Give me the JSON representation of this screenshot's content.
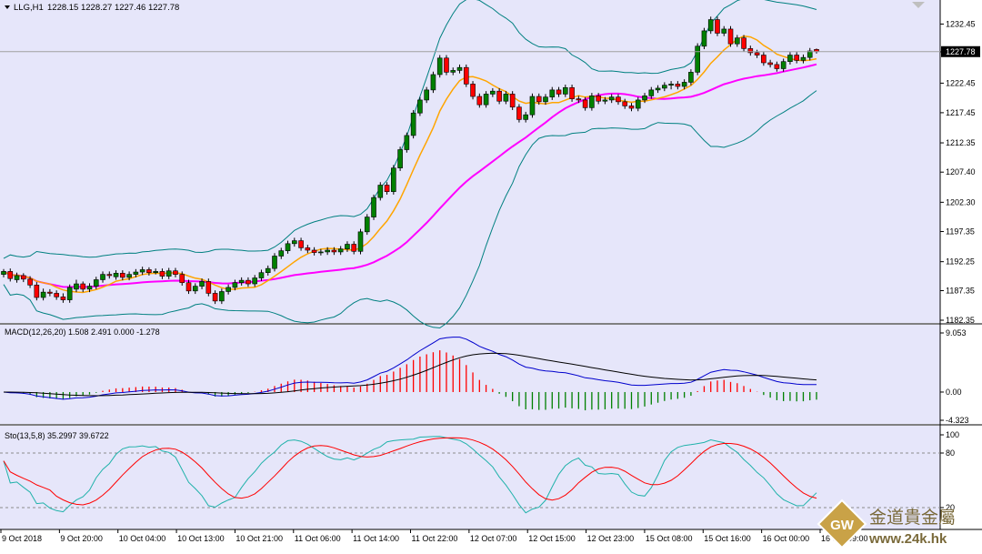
{
  "header": {
    "symbol_label": "LLG,H1",
    "ohlc_label": "1228.15 1228.27 1227.46 1227.78",
    "current_price": "1227.78"
  },
  "colors": {
    "background": "#E6E6FA",
    "bull_candle": "#008000",
    "bear_candle": "#FF0000",
    "ma_fast": "#FFA500",
    "ma_slow": "#FF00FF",
    "bands": "#008080",
    "macd_signal": "#000000",
    "macd_line": "#0000CD",
    "macd_hist_pos": "#FF0000",
    "macd_hist_neg": "#008000",
    "sto_main": "#FF0000",
    "sto_signal": "#20B2AA"
  },
  "chart_data": [
    {
      "type": "candlestick",
      "title": "LLG,H1",
      "ylim": [
        1182.35,
        1235.9
      ],
      "y_ticks": [
        "1232.45",
        "1227.75",
        "1222.45",
        "1217.45",
        "1212.35",
        "1207.40",
        "1202.30",
        "1197.35",
        "1192.25",
        "1187.35",
        "1182.35"
      ],
      "x_ticks": [
        "9 Oct 2018",
        "9 Oct 20:00",
        "10 Oct 04:00",
        "10 Oct 13:00",
        "10 Oct 21:00",
        "11 Oct 06:00",
        "11 Oct 14:00",
        "11 Oct 22:00",
        "12 Oct 07:00",
        "12 Oct 15:00",
        "12 Oct 23:00",
        "15 Oct 08:00",
        "15 Oct 16:00",
        "16 Oct 00:00",
        "16 Oct 09:00"
      ],
      "close": [
        1190.6,
        1189.4,
        1189.9,
        1189.3,
        1188.3,
        1186.2,
        1187.1,
        1186.9,
        1186.3,
        1185.8,
        1187.9,
        1188.5,
        1187.6,
        1188.1,
        1189.2,
        1190.1,
        1189.9,
        1190.3,
        1189.6,
        1190.1,
        1190.5,
        1190.9,
        1190.4,
        1190.6,
        1189.8,
        1190.7,
        1190.1,
        1188.7,
        1187.3,
        1188.1,
        1188.9,
        1186.9,
        1185.6,
        1187.2,
        1187.9,
        1188.7,
        1189.1,
        1188.5,
        1189.5,
        1190.4,
        1191.1,
        1193.2,
        1194.1,
        1195.3,
        1195.8,
        1194.6,
        1194.2,
        1193.8,
        1193.9,
        1194.2,
        1193.9,
        1194.4,
        1195.2,
        1194.0,
        1197.3,
        1199.8,
        1203.1,
        1205.2,
        1204.1,
        1208.1,
        1211.2,
        1213.6,
        1217.4,
        1219.6,
        1221.3,
        1223.9,
        1226.7,
        1224.3,
        1224.6,
        1225.1,
        1222.3,
        1220.2,
        1218.8,
        1220.6,
        1221.1,
        1219.4,
        1220.6,
        1218.4,
        1216.3,
        1217.1,
        1220.2,
        1219.3,
        1220.1,
        1221.3,
        1220.6,
        1221.7,
        1219.8,
        1219.6,
        1218.3,
        1220.3,
        1219.4,
        1219.6,
        1220.1,
        1219.3,
        1218.6,
        1218.2,
        1219.6,
        1220.3,
        1221.3,
        1221.6,
        1222.1,
        1222.3,
        1221.9,
        1222.6,
        1224.3,
        1228.7,
        1231.3,
        1233.2,
        1230.9,
        1231.6,
        1229.1,
        1230.1,
        1228.3,
        1227.6,
        1227.2,
        1225.9,
        1225.6,
        1224.9,
        1226.1,
        1227.2,
        1226.3,
        1226.8,
        1227.9,
        1227.78
      ],
      "open": [
        1190.1,
        1190.6,
        1189.2,
        1189.9,
        1189.3,
        1188.3,
        1186.2,
        1187.1,
        1186.9,
        1186.3,
        1185.8,
        1187.6,
        1188.5,
        1187.6,
        1188.1,
        1189.2,
        1190.1,
        1189.7,
        1190.3,
        1189.6,
        1190.1,
        1190.5,
        1190.9,
        1190.4,
        1190.6,
        1189.8,
        1190.7,
        1190.1,
        1188.7,
        1187.3,
        1188.1,
        1188.9,
        1186.9,
        1185.6,
        1187.2,
        1187.9,
        1188.7,
        1189.1,
        1188.5,
        1189.5,
        1190.4,
        1191.1,
        1193.2,
        1194.1,
        1195.3,
        1195.8,
        1194.6,
        1194.2,
        1193.8,
        1193.9,
        1194.2,
        1193.9,
        1194.4,
        1195.2,
        1194.0,
        1197.3,
        1199.8,
        1203.1,
        1205.2,
        1204.1,
        1208.1,
        1211.2,
        1213.6,
        1217.4,
        1219.6,
        1221.3,
        1223.9,
        1226.7,
        1224.3,
        1224.6,
        1225.1,
        1222.3,
        1220.2,
        1218.8,
        1220.6,
        1221.1,
        1219.4,
        1220.6,
        1218.4,
        1216.3,
        1217.1,
        1220.2,
        1219.3,
        1220.1,
        1221.3,
        1220.6,
        1221.7,
        1219.8,
        1219.6,
        1218.3,
        1220.3,
        1219.4,
        1219.6,
        1220.1,
        1219.3,
        1218.6,
        1218.2,
        1219.6,
        1220.3,
        1221.3,
        1221.6,
        1222.1,
        1222.3,
        1221.9,
        1222.6,
        1224.3,
        1228.7,
        1231.3,
        1233.2,
        1230.9,
        1231.6,
        1229.1,
        1230.1,
        1228.3,
        1227.6,
        1227.2,
        1225.9,
        1225.6,
        1224.9,
        1226.1,
        1227.2,
        1226.3,
        1226.8,
        1228.15
      ],
      "high": [
        1191.0,
        1191.1,
        1190.4,
        1190.3,
        1189.8,
        1188.8,
        1187.7,
        1187.6,
        1187.4,
        1186.9,
        1188.4,
        1189.2,
        1188.9,
        1188.6,
        1189.7,
        1190.6,
        1190.6,
        1190.8,
        1190.8,
        1190.6,
        1191.0,
        1191.4,
        1191.3,
        1191.1,
        1191.1,
        1191.2,
        1191.2,
        1190.6,
        1189.2,
        1188.6,
        1189.4,
        1189.4,
        1187.4,
        1187.7,
        1188.4,
        1189.2,
        1189.6,
        1189.6,
        1190.0,
        1190.9,
        1191.6,
        1193.7,
        1194.6,
        1195.8,
        1196.3,
        1196.3,
        1195.1,
        1194.7,
        1194.4,
        1194.7,
        1194.7,
        1194.9,
        1195.7,
        1195.7,
        1197.8,
        1200.3,
        1203.6,
        1205.7,
        1205.7,
        1208.6,
        1211.7,
        1214.1,
        1217.9,
        1220.1,
        1221.8,
        1224.4,
        1227.2,
        1227.2,
        1225.1,
        1225.6,
        1225.6,
        1222.8,
        1220.7,
        1221.1,
        1221.6,
        1221.6,
        1221.1,
        1221.1,
        1218.9,
        1217.6,
        1220.7,
        1220.7,
        1220.6,
        1221.8,
        1221.8,
        1222.2,
        1222.2,
        1220.3,
        1220.1,
        1220.8,
        1220.8,
        1220.1,
        1220.6,
        1220.6,
        1219.8,
        1219.1,
        1220.1,
        1220.8,
        1221.8,
        1222.1,
        1222.6,
        1222.8,
        1222.8,
        1223.1,
        1224.8,
        1229.2,
        1231.8,
        1233.7,
        1233.7,
        1232.1,
        1232.1,
        1230.6,
        1230.6,
        1228.8,
        1228.1,
        1227.7,
        1226.4,
        1226.1,
        1226.6,
        1227.7,
        1227.7,
        1227.3,
        1228.4,
        1228.3
      ],
      "low": [
        1189.6,
        1188.9,
        1188.7,
        1188.8,
        1187.8,
        1185.7,
        1185.7,
        1186.4,
        1185.8,
        1185.3,
        1185.3,
        1187.1,
        1187.1,
        1187.1,
        1187.6,
        1188.7,
        1189.4,
        1189.2,
        1189.1,
        1189.1,
        1189.6,
        1190.0,
        1189.9,
        1190.1,
        1189.3,
        1189.3,
        1189.6,
        1188.2,
        1186.8,
        1186.8,
        1187.6,
        1186.4,
        1185.1,
        1185.1,
        1186.7,
        1187.4,
        1188.2,
        1188.0,
        1188.0,
        1189.0,
        1189.9,
        1190.6,
        1192.7,
        1193.6,
        1194.8,
        1194.1,
        1193.7,
        1193.3,
        1193.3,
        1193.4,
        1193.4,
        1193.4,
        1193.9,
        1193.5,
        1193.5,
        1196.8,
        1199.3,
        1202.6,
        1203.6,
        1203.6,
        1207.6,
        1210.7,
        1213.1,
        1216.9,
        1219.1,
        1220.8,
        1223.4,
        1223.8,
        1223.8,
        1224.1,
        1221.8,
        1219.7,
        1218.3,
        1218.3,
        1220.1,
        1218.9,
        1218.9,
        1217.9,
        1215.8,
        1215.8,
        1216.6,
        1218.8,
        1218.8,
        1219.6,
        1220.1,
        1220.1,
        1219.3,
        1219.1,
        1217.8,
        1217.8,
        1218.9,
        1218.9,
        1219.1,
        1218.8,
        1218.1,
        1217.7,
        1217.7,
        1219.1,
        1219.8,
        1220.8,
        1221.1,
        1221.4,
        1221.4,
        1221.4,
        1222.1,
        1223.8,
        1228.2,
        1230.8,
        1230.4,
        1230.4,
        1228.6,
        1228.6,
        1227.8,
        1227.1,
        1226.7,
        1225.4,
        1225.1,
        1224.4,
        1224.4,
        1225.6,
        1225.8,
        1225.8,
        1226.3,
        1227.46
      ]
    },
    {
      "type": "line",
      "title": "MACD(12,26,20) 1.508 2.491 0.000 -1.278",
      "y_ticks": [
        "9.053",
        "0.00",
        "-4.323"
      ],
      "ylim": [
        -4.323,
        9.053
      ]
    },
    {
      "type": "line",
      "title": "Sto(13,5,8) 35.2997 39.6722",
      "y_ticks": [
        "100",
        "80",
        "20"
      ],
      "ylim": [
        0,
        100
      ]
    }
  ],
  "watermark": {
    "logo_text": "GW",
    "cn_name": "金道貴金屬",
    "url": "www.24k.hk"
  }
}
